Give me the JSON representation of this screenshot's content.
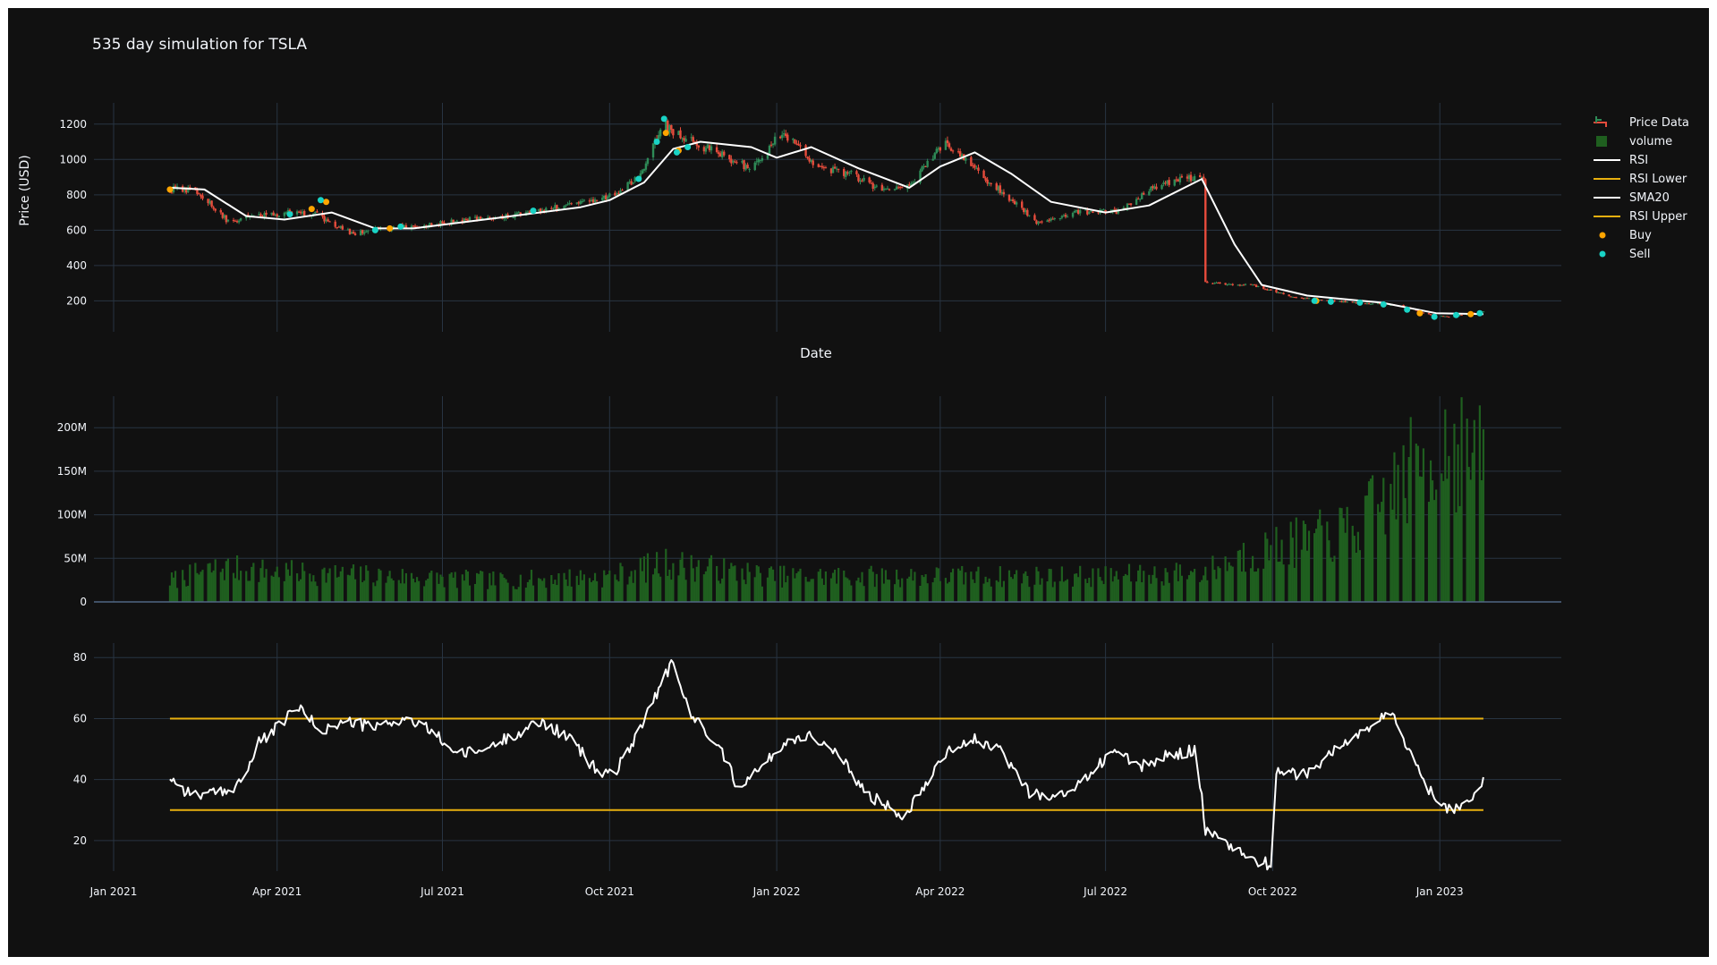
{
  "chart_data": {
    "type": "candlestick",
    "title": "535 day simulation for TSLA",
    "colors": {
      "background": "#111111",
      "grid": "#283442",
      "text": "#f2f5fa",
      "increasing": "#2e8b57",
      "decreasing": "#e74c3c",
      "volume": "#1f5f1f",
      "sma": "#ffffff",
      "rsi": "#ffffff",
      "rsi_bands": "#e8b00f",
      "buy": "#ffa500",
      "sell": "#19d3c5"
    },
    "legend": {
      "position": "top-right",
      "items": [
        {
          "label": "Price Data",
          "kind": "candle"
        },
        {
          "label": "volume",
          "kind": "bar"
        },
        {
          "label": "RSI",
          "kind": "line-white"
        },
        {
          "label": "RSI Lower",
          "kind": "line-yellow"
        },
        {
          "label": "SMA20",
          "kind": "line-white"
        },
        {
          "label": "RSI Upper",
          "kind": "line-yellow"
        },
        {
          "label": "Buy",
          "kind": "dot-buy"
        },
        {
          "label": "Sell",
          "kind": "dot-sell"
        }
      ]
    },
    "x_ticks": [
      "Jan 2021",
      "Apr 2021",
      "Jul 2021",
      "Oct 2021",
      "Jan 2022",
      "Apr 2022",
      "Jul 2022",
      "Oct 2022",
      "Jan 2023"
    ],
    "x_tick_dates": [
      "2021-01-01",
      "2021-04-01",
      "2021-07-01",
      "2021-10-01",
      "2022-01-01",
      "2022-04-01",
      "2022-07-01",
      "2022-10-01",
      "2023-01-01"
    ],
    "x_range": [
      "2021-01-01",
      "2023-03-01"
    ],
    "price_panel": {
      "ylabel": "Price (USD)",
      "xlabel": "Date",
      "y_ticks": [
        200,
        400,
        600,
        800,
        1000,
        1200
      ],
      "y_range": [
        25,
        1290
      ],
      "price_path": [
        [
          "2021-02-01",
          830
        ],
        [
          "2021-02-15",
          830
        ],
        [
          "2021-03-05",
          650
        ],
        [
          "2021-03-20",
          680
        ],
        [
          "2021-04-08",
          700
        ],
        [
          "2021-04-22",
          690
        ],
        [
          "2021-05-12",
          580
        ],
        [
          "2021-05-24",
          600
        ],
        [
          "2021-06-15",
          620
        ],
        [
          "2021-07-15",
          660
        ],
        [
          "2021-08-15",
          690
        ],
        [
          "2021-09-15",
          760
        ],
        [
          "2021-10-01",
          790
        ],
        [
          "2021-10-18",
          900
        ],
        [
          "2021-10-30",
          1210
        ],
        [
          "2021-11-05",
          1150
        ],
        [
          "2021-11-20",
          1080
        ],
        [
          "2021-12-18",
          950
        ],
        [
          "2022-01-04",
          1150
        ],
        [
          "2022-01-25",
          950
        ],
        [
          "2022-02-10",
          920
        ],
        [
          "2022-03-01",
          820
        ],
        [
          "2022-03-15",
          850
        ],
        [
          "2022-04-04",
          1100
        ],
        [
          "2022-04-25",
          900
        ],
        [
          "2022-05-24",
          650
        ],
        [
          "2022-06-15",
          700
        ],
        [
          "2022-07-08",
          710
        ],
        [
          "2022-07-28",
          850
        ],
        [
          "2022-08-15",
          900
        ],
        [
          "2022-08-24",
          890
        ],
        [
          "2022-08-25",
          300
        ],
        [
          "2022-09-20",
          290
        ],
        [
          "2022-10-15",
          215
        ],
        [
          "2022-11-15",
          190
        ],
        [
          "2022-12-10",
          175
        ],
        [
          "2022-12-27",
          120
        ],
        [
          "2023-01-06",
          110
        ],
        [
          "2023-01-25",
          140
        ]
      ],
      "sma20": [
        [
          "2021-02-01",
          840
        ],
        [
          "2021-02-20",
          830
        ],
        [
          "2021-03-15",
          680
        ],
        [
          "2021-04-05",
          660
        ],
        [
          "2021-05-01",
          700
        ],
        [
          "2021-05-25",
          610
        ],
        [
          "2021-06-15",
          610
        ],
        [
          "2021-08-01",
          670
        ],
        [
          "2021-09-15",
          730
        ],
        [
          "2021-10-01",
          770
        ],
        [
          "2021-10-20",
          870
        ],
        [
          "2021-11-05",
          1060
        ],
        [
          "2021-11-20",
          1100
        ],
        [
          "2021-12-18",
          1070
        ],
        [
          "2022-01-01",
          1010
        ],
        [
          "2022-01-20",
          1070
        ],
        [
          "2022-02-15",
          950
        ],
        [
          "2022-03-15",
          840
        ],
        [
          "2022-04-01",
          960
        ],
        [
          "2022-04-20",
          1040
        ],
        [
          "2022-05-10",
          920
        ],
        [
          "2022-06-01",
          760
        ],
        [
          "2022-07-01",
          700
        ],
        [
          "2022-07-25",
          740
        ],
        [
          "2022-08-23",
          890
        ],
        [
          "2022-09-10",
          520
        ],
        [
          "2022-09-25",
          290
        ],
        [
          "2022-10-20",
          230
        ],
        [
          "2022-11-30",
          190
        ],
        [
          "2022-12-30",
          130
        ],
        [
          "2023-01-25",
          125
        ]
      ],
      "buy_signals": [
        [
          "2021-02-01",
          830
        ],
        [
          "2021-04-20",
          720
        ],
        [
          "2021-04-28",
          760
        ],
        [
          "2021-06-02",
          610
        ],
        [
          "2021-11-01",
          1150
        ],
        [
          "2021-11-08",
          1050
        ],
        [
          "2022-10-25",
          200
        ],
        [
          "2022-12-21",
          130
        ],
        [
          "2023-01-18",
          125
        ]
      ],
      "sell_signals": [
        [
          "2021-04-08",
          690
        ],
        [
          "2021-04-25",
          770
        ],
        [
          "2021-05-25",
          600
        ],
        [
          "2021-06-08",
          620
        ],
        [
          "2021-08-20",
          710
        ],
        [
          "2021-10-17",
          890
        ],
        [
          "2021-10-27",
          1100
        ],
        [
          "2021-10-31",
          1230
        ],
        [
          "2021-11-07",
          1040
        ],
        [
          "2021-11-13",
          1070
        ],
        [
          "2022-10-24",
          200
        ],
        [
          "2022-11-02",
          195
        ],
        [
          "2022-11-18",
          190
        ],
        [
          "2022-12-01",
          180
        ],
        [
          "2022-12-14",
          150
        ],
        [
          "2022-12-29",
          110
        ],
        [
          "2023-01-10",
          120
        ],
        [
          "2023-01-23",
          130
        ]
      ]
    },
    "volume_panel": {
      "y_ticks": [
        0,
        50000000,
        100000000,
        150000000,
        200000000
      ],
      "y_tick_labels": [
        "0",
        "50M",
        "100M",
        "150M",
        "200M"
      ],
      "y_range": [
        0,
        230000000
      ],
      "volume_path": [
        [
          "2021-02-01",
          25000000
        ],
        [
          "2021-03-01",
          40000000
        ],
        [
          "2021-04-01",
          35000000
        ],
        [
          "2021-06-01",
          30000000
        ],
        [
          "2021-08-01",
          25000000
        ],
        [
          "2021-10-01",
          30000000
        ],
        [
          "2021-11-01",
          45000000
        ],
        [
          "2022-01-01",
          30000000
        ],
        [
          "2022-04-01",
          30000000
        ],
        [
          "2022-07-01",
          30000000
        ],
        [
          "2022-08-25",
          35000000
        ],
        [
          "2022-09-15",
          55000000
        ],
        [
          "2022-10-15",
          70000000
        ],
        [
          "2022-11-15",
          85000000
        ],
        [
          "2022-12-15",
          150000000
        ],
        [
          "2023-01-05",
          190000000
        ],
        [
          "2023-01-25",
          160000000
        ]
      ]
    },
    "rsi_panel": {
      "y_ticks": [
        20,
        40,
        60,
        80
      ],
      "y_range": [
        10,
        83
      ],
      "upper": 60,
      "lower": 30,
      "band_range": [
        "2021-02-01",
        "2023-01-25"
      ],
      "rsi": [
        [
          "2021-02-01",
          41
        ],
        [
          "2021-02-10",
          36
        ],
        [
          "2021-02-20",
          35
        ],
        [
          "2021-03-05",
          36
        ],
        [
          "2021-03-15",
          42
        ],
        [
          "2021-03-22",
          52
        ],
        [
          "2021-04-01",
          57
        ],
        [
          "2021-04-12",
          64
        ],
        [
          "2021-04-25",
          56
        ],
        [
          "2021-05-10",
          59
        ],
        [
          "2021-05-25",
          57
        ],
        [
          "2021-06-10",
          60
        ],
        [
          "2021-06-25",
          56
        ],
        [
          "2021-07-10",
          48
        ],
        [
          "2021-07-25",
          50
        ],
        [
          "2021-08-10",
          55
        ],
        [
          "2021-08-25",
          59
        ],
        [
          "2021-09-10",
          53
        ],
        [
          "2021-09-25",
          42
        ],
        [
          "2021-10-05",
          43
        ],
        [
          "2021-10-15",
          54
        ],
        [
          "2021-10-25",
          66
        ],
        [
          "2021-11-04",
          78
        ],
        [
          "2021-11-15",
          61
        ],
        [
          "2021-11-30",
          52
        ],
        [
          "2021-12-10",
          38
        ],
        [
          "2021-12-22",
          43
        ],
        [
          "2022-01-05",
          52
        ],
        [
          "2022-01-20",
          55
        ],
        [
          "2022-02-05",
          47
        ],
        [
          "2022-02-20",
          35
        ],
        [
          "2022-03-05",
          31
        ],
        [
          "2022-03-12",
          28
        ],
        [
          "2022-03-25",
          40
        ],
        [
          "2022-04-05",
          50
        ],
        [
          "2022-04-20",
          53
        ],
        [
          "2022-05-05",
          49
        ],
        [
          "2022-05-20",
          36
        ],
        [
          "2022-06-05",
          34
        ],
        [
          "2022-06-20",
          40
        ],
        [
          "2022-07-05",
          50
        ],
        [
          "2022-07-20",
          44
        ],
        [
          "2022-08-05",
          48
        ],
        [
          "2022-08-20",
          50
        ],
        [
          "2022-08-25",
          23
        ],
        [
          "2022-09-05",
          19
        ],
        [
          "2022-09-20",
          14
        ],
        [
          "2022-09-30",
          12
        ],
        [
          "2022-10-02",
          42
        ],
        [
          "2022-10-20",
          42
        ],
        [
          "2022-11-05",
          50
        ],
        [
          "2022-11-20",
          56
        ],
        [
          "2022-12-05",
          62
        ],
        [
          "2022-12-15",
          50
        ],
        [
          "2022-12-25",
          37
        ],
        [
          "2023-01-07",
          30
        ],
        [
          "2023-01-18",
          34
        ],
        [
          "2023-01-25",
          39
        ]
      ]
    }
  }
}
